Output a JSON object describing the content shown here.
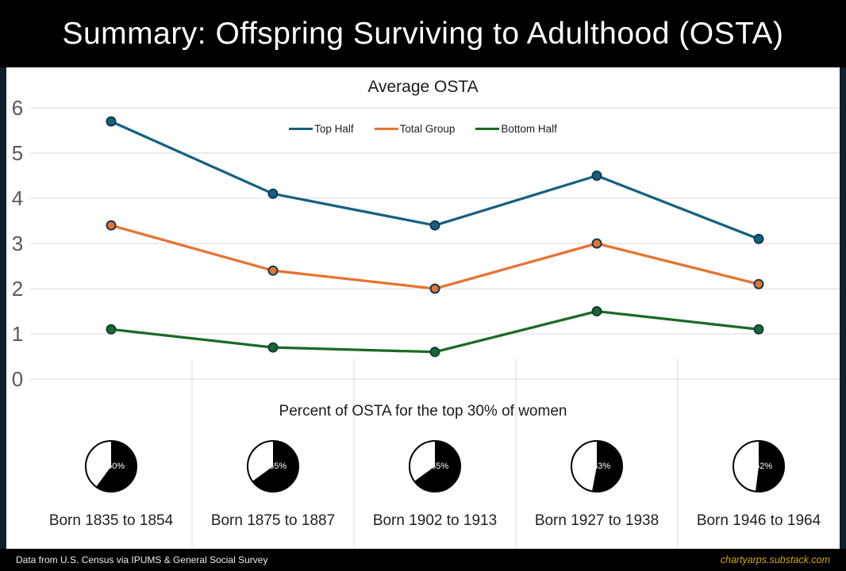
{
  "header": {
    "title": "Summary: Offspring Surviving to Adulthood (OSTA)"
  },
  "footer": {
    "source": "Data from U.S. Census via IPUMS & General Social Survey",
    "site": "chartyarps.substack.com"
  },
  "colors": {
    "header_bg": "#000000",
    "frame_border": "#0d1f2b",
    "grid": "#d9d9d9",
    "axis_label": "#595959",
    "footer_site": "#d9a300",
    "pie_slice": "#000000",
    "pie_remainder": "#ffffff"
  },
  "chart_data": [
    {
      "type": "line",
      "title": "Average OSTA",
      "categories": [
        "Born 1835 to 1854",
        "Born 1875 to 1887",
        "Born 1902 to 1913",
        "Born 1927 to 1938",
        "Born 1946 to 1964"
      ],
      "series": [
        {
          "name": "Top Half",
          "color": "#156082",
          "values": [
            5.7,
            4.1,
            3.4,
            4.5,
            3.1
          ]
        },
        {
          "name": "Total Group",
          "color": "#e97132",
          "values": [
            3.4,
            2.4,
            2.0,
            3.0,
            2.1
          ]
        },
        {
          "name": "Bottom Half",
          "color": "#196b24",
          "values": [
            1.1,
            0.7,
            0.6,
            1.5,
            1.1
          ]
        }
      ],
      "marker_outline": "#123a50",
      "ylim": [
        0,
        6
      ],
      "yticks": [
        0,
        1,
        2,
        3,
        4,
        5,
        6
      ],
      "grid": true,
      "legend_position": "top-center"
    },
    {
      "type": "pie",
      "title": "Percent of OSTA for the top 30% of women",
      "categories": [
        "Born 1835 to 1854",
        "Born 1875 to 1887",
        "Born 1902 to 1913",
        "Born 1927 to 1938",
        "Born 1946 to 1964"
      ],
      "values": [
        60,
        65,
        65,
        53,
        52
      ],
      "labels": [
        "60%",
        "65%",
        "65%",
        "53%",
        "52%"
      ],
      "slice_color": "#000000",
      "remainder_color": "#ffffff",
      "slice_start": "12-oclock-clockwise"
    }
  ]
}
